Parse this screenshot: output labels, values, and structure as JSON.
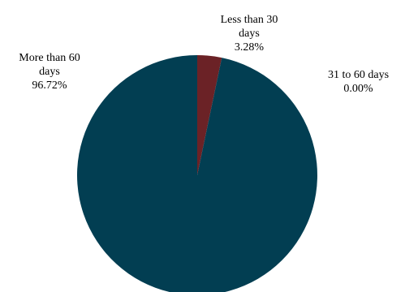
{
  "chart_data": {
    "type": "pie",
    "title": "",
    "slices": [
      {
        "label_lines": [
          "Less than 30",
          "days"
        ],
        "value": 3.28,
        "display": "3.28%",
        "color": "#6b2226"
      },
      {
        "label_lines": [
          "31 to 60 days"
        ],
        "value": 0.0,
        "display": "0.00%",
        "color": "#4a6b7a"
      },
      {
        "label_lines": [
          "More than 60",
          "days"
        ],
        "value": 96.72,
        "display": "96.72%",
        "color": "#023e52"
      }
    ],
    "start_angle_deg": 0,
    "direction": "clockwise"
  }
}
